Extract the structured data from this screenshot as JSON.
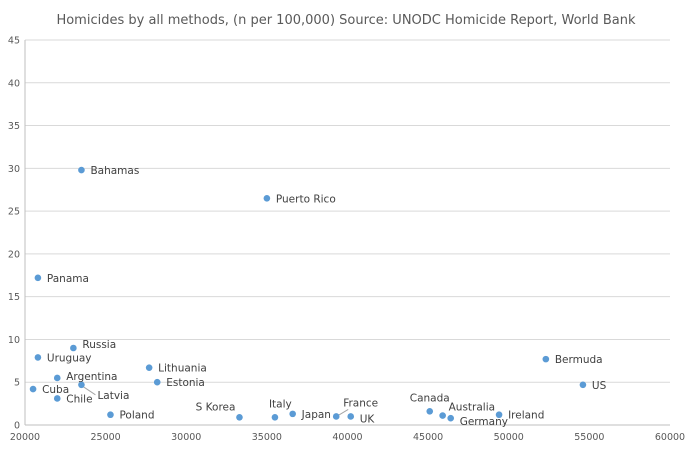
{
  "chart_data": {
    "type": "scatter",
    "title": "Homicides by all methods, (n per 100,000) Source: UNODC Homicide Report, World Bank",
    "xlabel": "",
    "ylabel": "",
    "xlim": [
      20000,
      60000
    ],
    "ylim": [
      0,
      45
    ],
    "x_ticks": [
      20000,
      25000,
      30000,
      35000,
      40000,
      45000,
      50000,
      55000,
      60000
    ],
    "y_ticks": [
      0,
      5,
      10,
      15,
      20,
      25,
      30,
      35,
      40,
      45
    ],
    "grid": "horizontal",
    "marker_color": "#5b9bd5",
    "points": [
      {
        "label": "Bahamas",
        "x": 23500,
        "y": 29.8
      },
      {
        "label": "Puerto Rico",
        "x": 35000,
        "y": 26.5
      },
      {
        "label": "Panama",
        "x": 20800,
        "y": 17.2
      },
      {
        "label": "Russia",
        "x": 23000,
        "y": 9.0
      },
      {
        "label": "Uruguay",
        "x": 20800,
        "y": 7.9
      },
      {
        "label": "Lithuania",
        "x": 27700,
        "y": 6.7
      },
      {
        "label": "Argentina",
        "x": 22000,
        "y": 5.5
      },
      {
        "label": "Estonia",
        "x": 28200,
        "y": 5.0
      },
      {
        "label": "Latvia",
        "x": 23500,
        "y": 4.7
      },
      {
        "label": "Cuba",
        "x": 20500,
        "y": 4.2
      },
      {
        "label": "Chile",
        "x": 22000,
        "y": 3.1
      },
      {
        "label": "Poland",
        "x": 25300,
        "y": 1.2
      },
      {
        "label": "S Korea",
        "x": 33300,
        "y": 0.9
      },
      {
        "label": "Italy",
        "x": 35500,
        "y": 0.9
      },
      {
        "label": "Japan",
        "x": 36600,
        "y": 1.3
      },
      {
        "label": "France",
        "x": 39300,
        "y": 1.0
      },
      {
        "label": "UK",
        "x": 40200,
        "y": 1.0
      },
      {
        "label": "Canada",
        "x": 45100,
        "y": 1.6
      },
      {
        "label": "Australia",
        "x": 45900,
        "y": 1.1
      },
      {
        "label": "Germany",
        "x": 46400,
        "y": 0.8
      },
      {
        "label": "Ireland",
        "x": 49400,
        "y": 1.2
      },
      {
        "label": "Bermuda",
        "x": 52300,
        "y": 7.7
      },
      {
        "label": "US",
        "x": 54600,
        "y": 4.7
      }
    ]
  }
}
